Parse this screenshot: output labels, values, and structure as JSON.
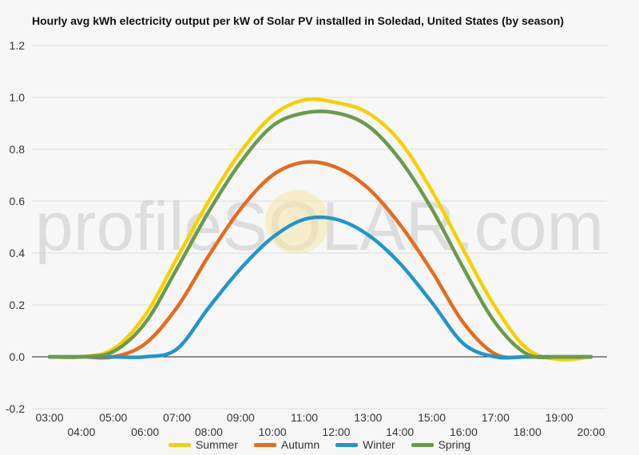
{
  "chart_data": {
    "type": "line",
    "title": "Hourly avg kWh electricity output per kW of Solar PV installed in Soledad, United States (by season)",
    "xlabel": "",
    "ylabel": "",
    "x": [
      "03:00",
      "04:00",
      "05:00",
      "06:00",
      "07:00",
      "08:00",
      "09:00",
      "10:00",
      "11:00",
      "12:00",
      "13:00",
      "14:00",
      "15:00",
      "16:00",
      "17:00",
      "18:00",
      "19:00",
      "20:00"
    ],
    "ylim": [
      -0.2,
      1.2
    ],
    "yticks": [
      -0.2,
      0.0,
      0.2,
      0.4,
      0.6,
      0.8,
      1.0,
      1.2
    ],
    "grid": true,
    "legend_position": "bottom",
    "watermark": "profileSOLAR.com",
    "series": [
      {
        "name": "Summer",
        "color": "#f5d100",
        "values": [
          0.0,
          0.0,
          0.03,
          0.16,
          0.38,
          0.6,
          0.79,
          0.93,
          0.99,
          0.98,
          0.94,
          0.83,
          0.64,
          0.41,
          0.19,
          0.03,
          -0.01,
          0.0
        ]
      },
      {
        "name": "Autumn",
        "color": "#e36c1e",
        "values": [
          0.0,
          0.0,
          0.0,
          0.05,
          0.19,
          0.39,
          0.57,
          0.7,
          0.75,
          0.73,
          0.65,
          0.51,
          0.33,
          0.13,
          0.01,
          0.0,
          0.0,
          0.0
        ]
      },
      {
        "name": "Winter",
        "color": "#2196c8",
        "values": [
          0.0,
          0.0,
          0.0,
          0.0,
          0.03,
          0.19,
          0.34,
          0.46,
          0.53,
          0.53,
          0.47,
          0.36,
          0.21,
          0.05,
          0.0,
          0.0,
          0.0,
          0.0
        ]
      },
      {
        "name": "Spring",
        "color": "#6b9a4c",
        "values": [
          0.0,
          0.0,
          0.02,
          0.13,
          0.34,
          0.56,
          0.75,
          0.89,
          0.94,
          0.94,
          0.89,
          0.76,
          0.57,
          0.34,
          0.13,
          0.01,
          0.0,
          0.0
        ]
      }
    ]
  }
}
